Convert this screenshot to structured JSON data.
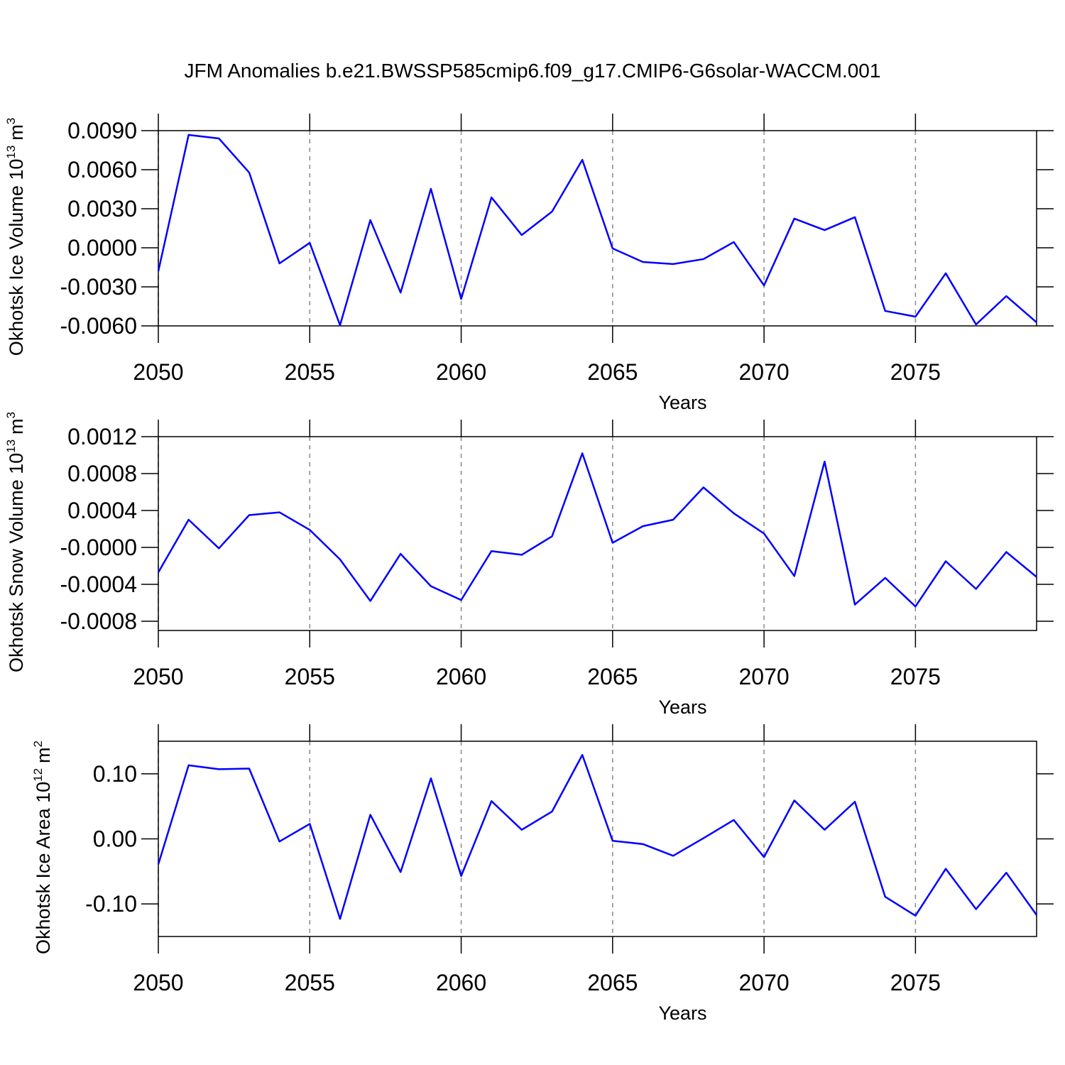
{
  "chart_data": [
    {
      "type": "line",
      "title": "JFM Anomalies b.e21.BWSSP585cmip6.f09_g17.CMIP6-G6solar-WACCM.001",
      "xlabel": "Years",
      "ylabel": {
        "base": "Okhotsk Ice Volume 10",
        "power": "13",
        "unit": "m",
        "unit_power": "3"
      },
      "x": [
        2050,
        2051,
        2052,
        2053,
        2054,
        2055,
        2056,
        2057,
        2058,
        2059,
        2060,
        2061,
        2062,
        2063,
        2064,
        2065,
        2066,
        2067,
        2068,
        2069,
        2070,
        2071,
        2072,
        2073,
        2074,
        2075,
        2076,
        2077,
        2078,
        2079
      ],
      "series": [
        {
          "color": "#0000ff",
          "values": [
            -0.0018,
            0.00867,
            0.0084,
            0.00578,
            -0.0012,
            0.00038,
            -0.00595,
            0.00213,
            -0.00344,
            0.00453,
            -0.00393,
            0.00387,
            0.00098,
            0.00278,
            0.00676,
            -5e-05,
            -0.00109,
            -0.00125,
            -0.00087,
            0.00044,
            -0.00289,
            0.00224,
            0.00136,
            0.00235,
            -0.00485,
            -0.00529,
            -0.00196,
            -0.00589,
            -0.00371,
            -0.00573
          ]
        }
      ],
      "xlim": [
        2050,
        2079
      ],
      "xticks": [
        2050,
        2055,
        2060,
        2065,
        2070,
        2075
      ],
      "ylim": [
        -0.006,
        0.009
      ],
      "yticks": [
        {
          "value": 0.009,
          "label": "0.0090"
        },
        {
          "value": 0.006,
          "label": "0.0060"
        },
        {
          "value": 0.003,
          "label": "0.0030"
        },
        {
          "value": 0,
          "label": "0.0000"
        },
        {
          "value": -0.003,
          "label": "-0.0030"
        },
        {
          "value": -0.006,
          "label": "-0.0060"
        }
      ],
      "grid": "x-dashed"
    },
    {
      "type": "line",
      "xlabel": "Years",
      "ylabel": {
        "base": "Okhotsk Snow Volume 10",
        "power": "13",
        "unit": "m",
        "unit_power": "3"
      },
      "x": [
        2050,
        2051,
        2052,
        2053,
        2054,
        2055,
        2056,
        2057,
        2058,
        2059,
        2060,
        2061,
        2062,
        2063,
        2064,
        2065,
        2066,
        2067,
        2068,
        2069,
        2070,
        2071,
        2072,
        2073,
        2074,
        2075,
        2076,
        2077,
        2078,
        2079
      ],
      "series": [
        {
          "color": "#0000ff",
          "values": [
            -0.00027,
            0.0003,
            -1e-05,
            0.00035,
            0.00038,
            0.00019,
            -0.00013,
            -0.00058,
            -7e-05,
            -0.00042,
            -0.00057,
            -4e-05,
            -8e-05,
            0.00012,
            0.00102,
            5e-05,
            0.00023,
            0.0003,
            0.00065,
            0.00037,
            0.00015,
            -0.00031,
            0.00093,
            -0.00062,
            -0.00033,
            -0.00064,
            -0.00015,
            -0.00045,
            -5e-05,
            -0.00032
          ]
        }
      ],
      "xlim": [
        2050,
        2079
      ],
      "xticks": [
        2050,
        2055,
        2060,
        2065,
        2070,
        2075
      ],
      "ylim": [
        -0.0009,
        0.0012
      ],
      "yticks": [
        {
          "value": 0.0012,
          "label": "0.0012"
        },
        {
          "value": 0.0008,
          "label": "0.0008"
        },
        {
          "value": 0.0004,
          "label": "0.0004"
        },
        {
          "value": 0,
          "label": "-0.0000"
        },
        {
          "value": -0.0004,
          "label": "-0.0004"
        },
        {
          "value": -0.0008,
          "label": "-0.0008"
        }
      ],
      "grid": "x-dashed"
    },
    {
      "type": "line",
      "xlabel": "Years",
      "ylabel": {
        "base": "Okhotsk Ice Area 10",
        "power": "12",
        "unit": "m",
        "unit_power": "2"
      },
      "x": [
        2050,
        2051,
        2052,
        2053,
        2054,
        2055,
        2056,
        2057,
        2058,
        2059,
        2060,
        2061,
        2062,
        2063,
        2064,
        2065,
        2066,
        2067,
        2068,
        2069,
        2070,
        2071,
        2072,
        2073,
        2074,
        2075,
        2076,
        2077,
        2078,
        2079
      ],
      "series": [
        {
          "color": "#0000ff",
          "values": [
            -0.039,
            0.113,
            0.107,
            0.108,
            -0.004,
            0.023,
            -0.123,
            0.037,
            -0.051,
            0.093,
            -0.057,
            0.058,
            0.014,
            0.042,
            0.129,
            -0.003,
            -0.008,
            -0.026,
            0.001,
            0.029,
            -0.028,
            0.059,
            0.014,
            0.057,
            -0.089,
            -0.118,
            -0.046,
            -0.108,
            -0.052,
            -0.117
          ]
        }
      ],
      "xlim": [
        2050,
        2079
      ],
      "xticks": [
        2050,
        2055,
        2060,
        2065,
        2070,
        2075
      ],
      "ylim": [
        -0.15,
        0.15
      ],
      "yticks": [
        {
          "value": 0.1,
          "label": "0.10"
        },
        {
          "value": 0,
          "label": "0.00"
        },
        {
          "value": -0.1,
          "label": "-0.10"
        }
      ],
      "grid": "x-dashed"
    }
  ]
}
